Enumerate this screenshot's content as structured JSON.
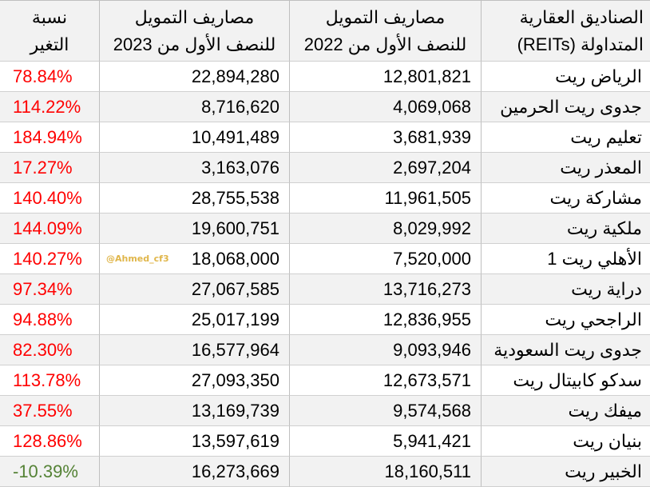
{
  "headers": {
    "name": [
      "الصناديق العقارية",
      "المتداولة (REITs)"
    ],
    "col2022": [
      "مصاريف التمويل",
      "للنصف الأول من 2022"
    ],
    "col2023": [
      "مصاريف التمويل",
      "للنصف الأول من 2023"
    ],
    "change": [
      "نسبة",
      "التغير"
    ]
  },
  "watermark": "@Ahmed_cf3",
  "rows": [
    {
      "name": "الرياض ريت",
      "v2022": "12,801,821",
      "v2023": "22,894,280",
      "change": "78.84%",
      "direction": "up"
    },
    {
      "name": "جدوى ريت الحرمين",
      "v2022": "4,069,068",
      "v2023": "8,716,620",
      "change": "114.22%",
      "direction": "up"
    },
    {
      "name": "تعليم ريت",
      "v2022": "3,681,939",
      "v2023": "10,491,489",
      "change": "184.94%",
      "direction": "up"
    },
    {
      "name": "المعذر ريت",
      "v2022": "2,697,204",
      "v2023": "3,163,076",
      "change": "17.27%",
      "direction": "up"
    },
    {
      "name": "مشاركة ريت",
      "v2022": "11,961,505",
      "v2023": "28,755,538",
      "change": "140.40%",
      "direction": "up"
    },
    {
      "name": "ملكية ريت",
      "v2022": "8,029,992",
      "v2023": "19,600,751",
      "change": "144.09%",
      "direction": "up"
    },
    {
      "name": "الأهلي ريت 1",
      "v2022": "7,520,000",
      "v2023": "18,068,000",
      "change": "140.27%",
      "direction": "up"
    },
    {
      "name": "دراية ريت",
      "v2022": "13,716,273",
      "v2023": "27,067,585",
      "change": "97.34%",
      "direction": "up"
    },
    {
      "name": "الراجحي ريت",
      "v2022": "12,836,955",
      "v2023": "25,017,199",
      "change": "94.88%",
      "direction": "up"
    },
    {
      "name": "جدوى ريت السعودية",
      "v2022": "9,093,946",
      "v2023": "16,577,964",
      "change": "82.30%",
      "direction": "up"
    },
    {
      "name": "سدكو كابيتال ريت",
      "v2022": "12,673,571",
      "v2023": "27,093,350",
      "change": "113.78%",
      "direction": "up"
    },
    {
      "name": "ميفك ريت",
      "v2022": "9,574,568",
      "v2023": "13,169,739",
      "change": "37.55%",
      "direction": "up"
    },
    {
      "name": "بنيان ريت",
      "v2022": "5,941,421",
      "v2023": "13,597,619",
      "change": "128.86%",
      "direction": "up"
    },
    {
      "name": "الخبير ريت",
      "v2022": "18,160,511",
      "v2023": "16,273,669",
      "change": "-10.39%",
      "direction": "down"
    }
  ],
  "colors": {
    "increase": "#ff0000",
    "decrease": "#548235",
    "watermark": "#e0b64a",
    "stripe": "#f2f2f2"
  }
}
